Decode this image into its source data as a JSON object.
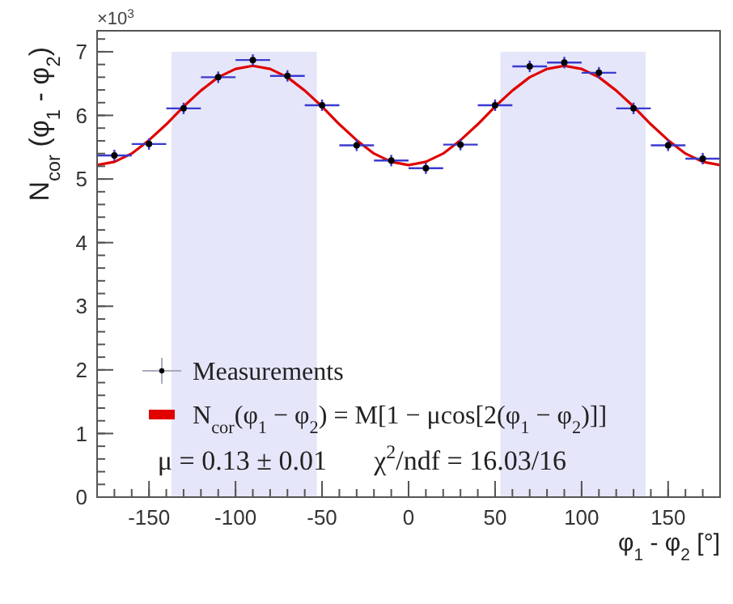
{
  "chart_data": {
    "type": "scatter",
    "xlabel": "φ$_{1}$ - φ$_{2}$ [°]",
    "ylabel": "N$_{cor}$ (φ$_{1}$ - φ$_{2}$)",
    "xlim": [
      -180,
      180
    ],
    "xticks": [
      -150,
      -100,
      -50,
      0,
      50,
      100,
      150
    ],
    "ylim": [
      0,
      7.33
    ],
    "yticks": [
      0,
      1,
      2,
      3,
      4,
      5,
      6,
      7
    ],
    "grid": false,
    "legend": "bottom left",
    "marker": "circle",
    "annotations": [
      "×10$^{3}$",
      "μ = 0.13 ± 0.01",
      "χ$^{2}$/ndf = 16.03/16"
    ],
    "bands": [
      {
        "axis": "x",
        "from": -137,
        "to": -53,
        "color": "#e6e6fa"
      },
      {
        "axis": "x",
        "from": 53,
        "to": 137,
        "color": "#e6e6fa"
      }
    ],
    "series": [
      {
        "name": "Measurements",
        "color": "#000000",
        "x": [
          -170,
          -150,
          -130,
          -110,
          -90,
          -70,
          -50,
          -30,
          -10,
          10,
          30,
          50,
          70,
          90,
          110,
          130,
          150,
          170
        ],
        "values": [
          5.37,
          5.55,
          6.11,
          6.6,
          6.87,
          6.62,
          6.16,
          5.53,
          5.29,
          5.17,
          5.54,
          6.16,
          6.77,
          6.83,
          6.67,
          6.11,
          5.53,
          5.32
        ],
        "errors": [
          0.09,
          0.09,
          0.09,
          0.09,
          0.09,
          0.09,
          0.09,
          0.09,
          0.09,
          0.09,
          0.09,
          0.09,
          0.09,
          0.09,
          0.09,
          0.09,
          0.09,
          0.09
        ],
        "xerrors": [
          10,
          10,
          10,
          10,
          10,
          10,
          10,
          10,
          10,
          10,
          10,
          10,
          10,
          10,
          10,
          10,
          10,
          10
        ]
      },
      {
        "name": "N$_{cor}$(φ$_{1}$ − φ$_{2}$) = M[1 − μcos[2(φ$_{1}$ − φ$_{2}$)]]",
        "type": "line",
        "color": "#e00000",
        "marker": "none",
        "line_style": "solid",
        "x": [
          -180,
          -170,
          -160,
          -150,
          -140,
          -130,
          -120,
          -110,
          -100,
          -90,
          -80,
          -70,
          -60,
          -50,
          -40,
          -30,
          -20,
          -10,
          0,
          10,
          20,
          30,
          40,
          50,
          60,
          70,
          80,
          90,
          100,
          110,
          120,
          130,
          140,
          150,
          160,
          170,
          180
        ],
        "values": [
          5.22,
          5.27,
          5.4,
          5.61,
          5.86,
          6.14,
          6.39,
          6.6,
          6.73,
          6.78,
          6.73,
          6.6,
          6.39,
          6.14,
          5.86,
          5.61,
          5.4,
          5.27,
          5.22,
          5.27,
          5.4,
          5.61,
          5.86,
          6.14,
          6.39,
          6.6,
          6.73,
          6.78,
          6.73,
          6.6,
          6.39,
          6.14,
          5.86,
          5.61,
          5.4,
          5.27,
          5.22
        ]
      }
    ]
  }
}
